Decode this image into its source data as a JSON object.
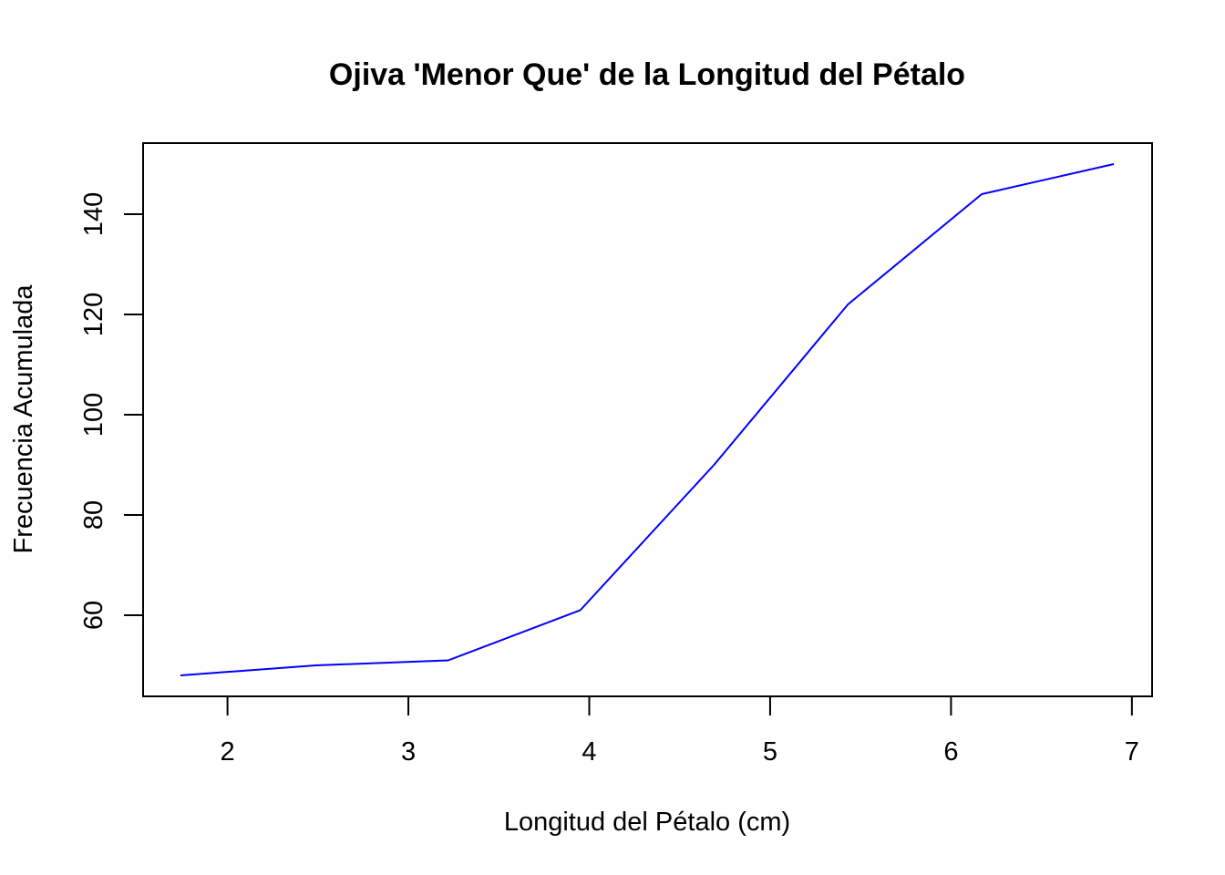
{
  "chart_data": {
    "type": "line",
    "title": "Ojiva 'Menor Que' de la Longitud del Pétalo",
    "xlabel": "Longitud del Pétalo (cm)",
    "ylabel": "Frecuencia Acumulada",
    "x": [
      1.74,
      2.49,
      3.22,
      3.95,
      4.69,
      5.43,
      6.17,
      6.9
    ],
    "series": [
      {
        "values": [
          48,
          50,
          51,
          61,
          90,
          122,
          144,
          150
        ],
        "color": "#0000ff"
      }
    ],
    "xlim": [
      1.74,
      6.9
    ],
    "ylim": [
      48,
      150
    ],
    "x_ticks": [
      2,
      3,
      4,
      5,
      6,
      7
    ],
    "y_ticks": [
      60,
      80,
      100,
      120,
      140
    ],
    "grid": false,
    "legend": "none"
  }
}
